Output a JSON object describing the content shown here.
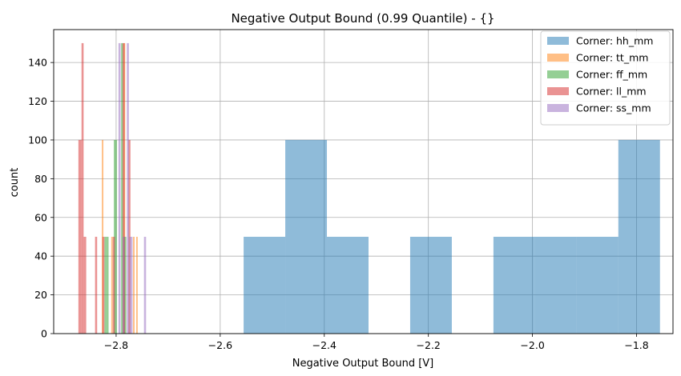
{
  "chart_data": {
    "type": "histogram",
    "title": "Negative Output Bound (0.99 Quantile) - {}",
    "xlabel": "Negative Output Bound [V]",
    "ylabel": "count",
    "xlim": [
      -2.92,
      -1.73
    ],
    "ylim": [
      0,
      157
    ],
    "xticks": [
      -2.8,
      -2.6,
      -2.4,
      -2.2,
      -2.0,
      -1.8
    ],
    "xtick_labels": [
      "−2.8",
      "−2.6",
      "−2.4",
      "−2.2",
      "−2.0",
      "−1.8"
    ],
    "yticks": [
      0,
      20,
      40,
      60,
      80,
      100,
      120,
      140
    ],
    "ytick_labels": [
      "0",
      "20",
      "40",
      "60",
      "80",
      "100",
      "120",
      "140"
    ],
    "grid": true,
    "legend_position": "top-right",
    "series": [
      {
        "name": "Corner: hh_mm",
        "color": "#1f77b4",
        "bins": [
          {
            "x0": -2.555,
            "x1": -2.475,
            "count": 50
          },
          {
            "x0": -2.475,
            "x1": -2.395,
            "count": 100
          },
          {
            "x0": -2.395,
            "x1": -2.315,
            "count": 50
          },
          {
            "x0": -2.235,
            "x1": -2.155,
            "count": 50
          },
          {
            "x0": -2.075,
            "x1": -1.995,
            "count": 50
          },
          {
            "x0": -1.995,
            "x1": -1.915,
            "count": 50
          },
          {
            "x0": -1.915,
            "x1": -1.835,
            "count": 50
          },
          {
            "x0": -1.835,
            "x1": -1.755,
            "count": 100
          }
        ]
      },
      {
        "name": "Corner: tt_mm",
        "color": "#ff7f0e",
        "bins": [
          {
            "x0": -2.8275,
            "x1": -2.8245,
            "count": 100
          },
          {
            "x0": -2.8095,
            "x1": -2.8065,
            "count": 50
          },
          {
            "x0": -2.7855,
            "x1": -2.7825,
            "count": 150
          },
          {
            "x0": -2.7675,
            "x1": -2.7645,
            "count": 50
          },
          {
            "x0": -2.7615,
            "x1": -2.7585,
            "count": 50
          }
        ]
      },
      {
        "name": "Corner: ff_mm",
        "color": "#2ca02c",
        "bins": [
          {
            "x0": -2.8225,
            "x1": -2.8185,
            "count": 50
          },
          {
            "x0": -2.8185,
            "x1": -2.8145,
            "count": 50
          },
          {
            "x0": -2.8045,
            "x1": -2.7985,
            "count": 100
          },
          {
            "x0": -2.7905,
            "x1": -2.7865,
            "count": 150
          },
          {
            "x0": -2.7845,
            "x1": -2.7805,
            "count": 50
          }
        ]
      },
      {
        "name": "Corner: ll_mm",
        "color": "#d62728",
        "bins": [
          {
            "x0": -2.8725,
            "x1": -2.8665,
            "count": 100
          },
          {
            "x0": -2.8665,
            "x1": -2.8625,
            "count": 150
          },
          {
            "x0": -2.8625,
            "x1": -2.8575,
            "count": 50
          },
          {
            "x0": -2.8405,
            "x1": -2.8365,
            "count": 50
          },
          {
            "x0": -2.8265,
            "x1": -2.8225,
            "count": 50
          },
          {
            "x0": -2.8065,
            "x1": -2.8025,
            "count": 50
          },
          {
            "x0": -2.7875,
            "x1": -2.7835,
            "count": 150
          },
          {
            "x0": -2.7765,
            "x1": -2.7725,
            "count": 100
          }
        ]
      },
      {
        "name": "Corner: ss_mm",
        "color": "#9467bd",
        "bins": [
          {
            "x0": -2.7955,
            "x1": -2.7915,
            "count": 150
          },
          {
            "x0": -2.7875,
            "x1": -2.7835,
            "count": 50
          },
          {
            "x0": -2.7795,
            "x1": -2.7755,
            "count": 150
          },
          {
            "x0": -2.7745,
            "x1": -2.7685,
            "count": 50
          },
          {
            "x0": -2.7465,
            "x1": -2.7425,
            "count": 50
          }
        ]
      }
    ]
  }
}
